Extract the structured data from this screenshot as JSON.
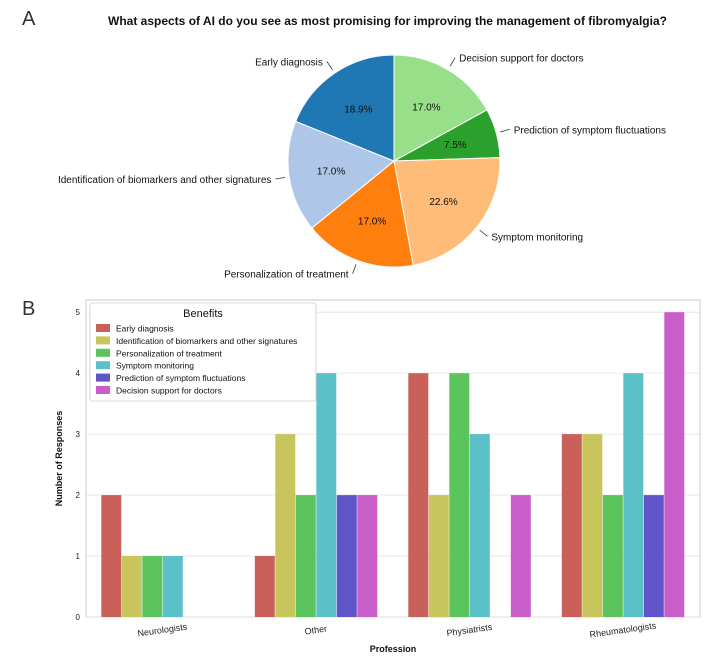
{
  "panels": {
    "a_label": "A",
    "b_label": "B"
  },
  "chart_data": [
    {
      "type": "pie",
      "title": "What aspects of AI do you see as most promising for improving the management of fibromyalgia?",
      "slices": [
        {
          "label": "Decision support for doctors",
          "value": 17.0,
          "pct_label": "17.0%",
          "color": "#98df8a"
        },
        {
          "label": "Prediction of symptom fluctuations",
          "value": 7.5,
          "pct_label": "7.5%",
          "color": "#2ca02c"
        },
        {
          "label": "Symptom monitoring",
          "value": 22.6,
          "pct_label": "22.6%",
          "color": "#ffbb78"
        },
        {
          "label": "Personalization of treatment",
          "value": 17.0,
          "pct_label": "17.0%",
          "color": "#ff7f0e"
        },
        {
          "label": "Identification of biomarkers and other signatures",
          "value": 17.0,
          "pct_label": "17.0%",
          "color": "#aec7e8"
        },
        {
          "label": "Early diagnosis",
          "value": 18.9,
          "pct_label": "18.9%",
          "color": "#1f77b4"
        }
      ]
    },
    {
      "type": "bar",
      "xlabel": "Profession",
      "ylabel": "Number of Responses",
      "ylim": [
        0,
        5.2
      ],
      "yticks": [
        "0",
        "1",
        "2",
        "3",
        "4",
        "5"
      ],
      "grid": true,
      "legend_title": "Benefits",
      "legend_position": "top-left",
      "categories": [
        "Neurologists",
        "Other",
        "Physiatrists",
        "Rheumatologists"
      ],
      "series": [
        {
          "name": "Early diagnosis",
          "color": "#c9605a",
          "values": [
            2,
            1,
            4,
            3
          ]
        },
        {
          "name": "Identification of biomarkers and other signatures",
          "color": "#c8c55c",
          "values": [
            1,
            3,
            2,
            3
          ]
        },
        {
          "name": "Personalization of treatment",
          "color": "#5cc45c",
          "values": [
            1,
            2,
            4,
            2
          ]
        },
        {
          "name": "Symptom monitoring",
          "color": "#5cc0c9",
          "values": [
            1,
            4,
            3,
            4
          ]
        },
        {
          "name": "Prediction of symptom fluctuations",
          "color": "#5f55c9",
          "values": [
            null,
            2,
            null,
            2
          ]
        },
        {
          "name": "Decision support for doctors",
          "color": "#c95ec9",
          "values": [
            null,
            2,
            2,
            5
          ]
        }
      ]
    }
  ]
}
